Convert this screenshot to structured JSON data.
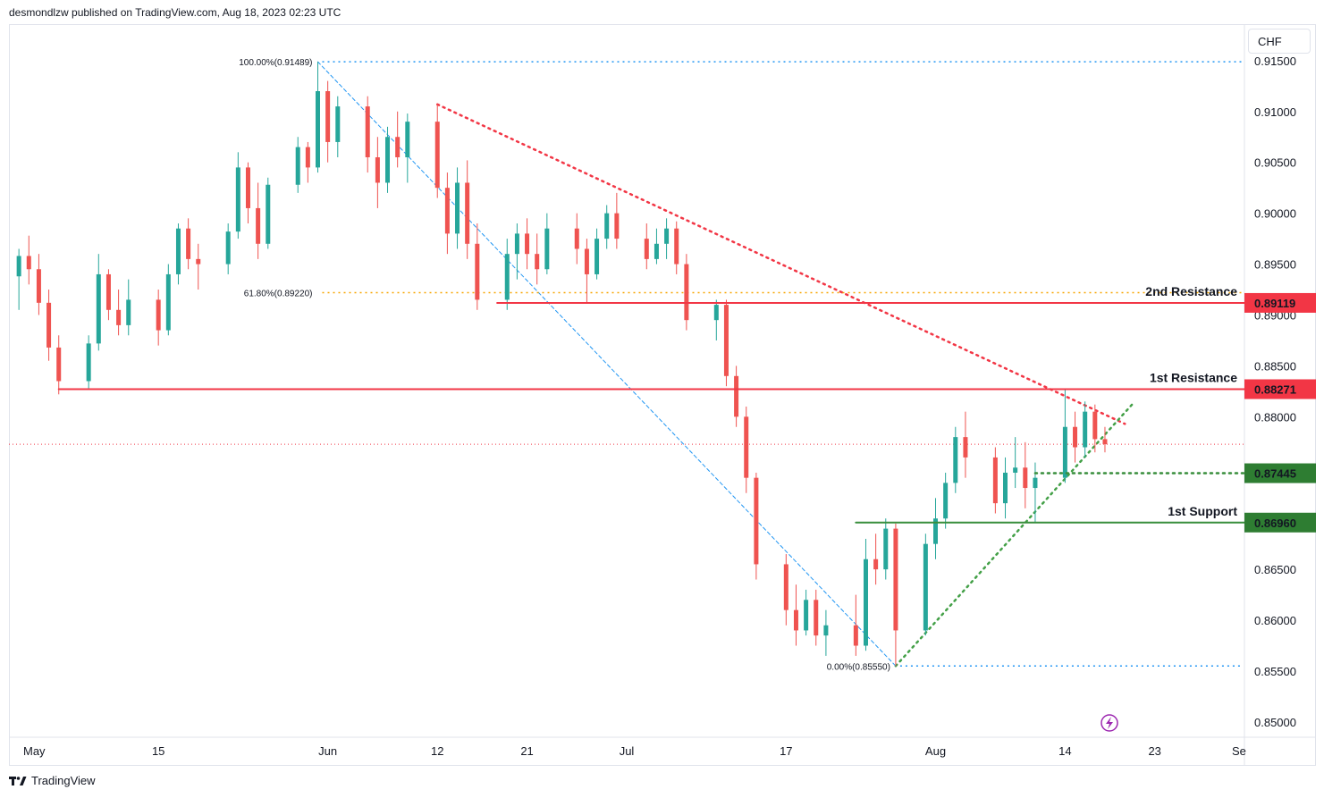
{
  "header": {
    "text": "desmondlzw published on TradingView.com, Aug 18, 2023 02:23 UTC"
  },
  "currency_button": {
    "label": "CHF"
  },
  "footer": {
    "brand": "TradingView"
  },
  "colors": {
    "up": "#26a69a",
    "down": "#ef5350",
    "resistance": "#f23645",
    "support": "#388e3c",
    "fib": "#2962ff",
    "fib618": "#f7a600"
  },
  "icons": {
    "brand": "tradingview-logo-icon",
    "replay": "lightning-icon"
  },
  "chart_data": {
    "type": "candlestick",
    "ylim": [
      0.8485,
      0.9185
    ],
    "y_ticks": [
      "0.91500",
      "0.91000",
      "0.90500",
      "0.90000",
      "0.89500",
      "0.89000",
      "0.88500",
      "0.88000",
      "0.87500",
      "0.87000",
      "0.86500",
      "0.86000",
      "0.85500",
      "0.85000"
    ],
    "x_ticks": [
      {
        "label": "May",
        "date": "2023-05-01"
      },
      {
        "label": "15",
        "date": "2023-05-15"
      },
      {
        "label": "Jun",
        "date": "2023-06-01"
      },
      {
        "label": "12",
        "date": "2023-06-12"
      },
      {
        "label": "21",
        "date": "2023-06-21"
      },
      {
        "label": "Jul",
        "date": "2023-07-01"
      },
      {
        "label": "17",
        "date": "2023-07-17"
      },
      {
        "label": "Aug",
        "date": "2023-08-01"
      },
      {
        "label": "14",
        "date": "2023-08-14"
      },
      {
        "label": "23",
        "date": "2023-08-23"
      },
      {
        "label": "Se",
        "date": "2023-09-01"
      }
    ],
    "x_range": [
      "2023-04-30",
      "2023-09-01"
    ],
    "levels": [
      {
        "name": "2nd Resistance",
        "value": 0.89119,
        "label": "0.89119",
        "kind": "resistance",
        "from": "2023-06-18"
      },
      {
        "name": "1st Resistance",
        "value": 0.88271,
        "label": "0.88271",
        "kind": "resistance",
        "from": "2023-05-05"
      },
      {
        "name": "",
        "value": 0.87445,
        "label": "0.87445",
        "kind": "support-dotted",
        "from": "2023-08-11"
      },
      {
        "name": "1st Support",
        "value": 0.8696,
        "label": "0.86960",
        "kind": "support",
        "from": "2023-07-24"
      }
    ],
    "fibonacci": [
      {
        "label": "100.00%(0.91489)",
        "value": 0.91489,
        "from": "2023-05-31"
      },
      {
        "label": "61.80%(0.89220)",
        "value": 0.8922,
        "from": "2023-05-31"
      },
      {
        "label": "0.00%(0.85550)",
        "value": 0.8555,
        "from": "2023-07-28"
      }
    ],
    "trendlines": [
      {
        "kind": "resistance",
        "points": [
          [
            "2023-06-12",
            0.9107
          ],
          [
            "2023-08-20",
            0.8793
          ]
        ]
      },
      {
        "kind": "support",
        "points": [
          [
            "2023-07-28",
            0.8555
          ],
          [
            "2023-08-21",
            0.8815
          ]
        ]
      },
      {
        "kind": "fib-diagonal",
        "points": [
          [
            "2023-05-31",
            0.91489
          ],
          [
            "2023-07-28",
            0.8555
          ]
        ]
      }
    ],
    "current_price": 0.8773,
    "ohlc": [
      [
        "2023-05-01",
        0.8938,
        0.8965,
        0.8905,
        0.8958
      ],
      [
        "2023-05-02",
        0.8958,
        0.8978,
        0.893,
        0.8945
      ],
      [
        "2023-05-03",
        0.8945,
        0.896,
        0.89,
        0.8912
      ],
      [
        "2023-05-04",
        0.8912,
        0.8925,
        0.8855,
        0.8868
      ],
      [
        "2023-05-05",
        0.8868,
        0.888,
        0.8822,
        0.8835
      ],
      [
        "2023-05-08",
        0.8835,
        0.888,
        0.8828,
        0.8872
      ],
      [
        "2023-05-09",
        0.8872,
        0.896,
        0.8865,
        0.894
      ],
      [
        "2023-05-10",
        0.894,
        0.8945,
        0.8895,
        0.8905
      ],
      [
        "2023-05-11",
        0.8905,
        0.8925,
        0.888,
        0.889
      ],
      [
        "2023-05-12",
        0.889,
        0.8935,
        0.888,
        0.8915
      ],
      [
        "2023-05-15",
        0.8915,
        0.8925,
        0.887,
        0.8885
      ],
      [
        "2023-05-16",
        0.8885,
        0.895,
        0.888,
        0.894
      ],
      [
        "2023-05-17",
        0.894,
        0.899,
        0.893,
        0.8985
      ],
      [
        "2023-05-18",
        0.8985,
        0.8995,
        0.8945,
        0.8955
      ],
      [
        "2023-05-19",
        0.8955,
        0.897,
        0.8925,
        0.895
      ],
      [
        "2023-05-22",
        0.895,
        0.899,
        0.894,
        0.8982
      ],
      [
        "2023-05-23",
        0.8982,
        0.906,
        0.8975,
        0.9045
      ],
      [
        "2023-05-24",
        0.9045,
        0.905,
        0.899,
        0.9005
      ],
      [
        "2023-05-25",
        0.9005,
        0.903,
        0.8955,
        0.897
      ],
      [
        "2023-05-26",
        0.897,
        0.9035,
        0.8965,
        0.9028
      ],
      [
        "2023-05-29",
        0.9028,
        0.9075,
        0.902,
        0.9065
      ],
      [
        "2023-05-30",
        0.9065,
        0.907,
        0.903,
        0.9045
      ],
      [
        "2023-05-31",
        0.9045,
        0.9149,
        0.904,
        0.912
      ],
      [
        "2023-06-01",
        0.912,
        0.913,
        0.905,
        0.907
      ],
      [
        "2023-06-02",
        0.907,
        0.9115,
        0.9055,
        0.9105
      ],
      [
        "2023-06-05",
        0.9105,
        0.9115,
        0.904,
        0.9055
      ],
      [
        "2023-06-06",
        0.9055,
        0.9075,
        0.9005,
        0.903
      ],
      [
        "2023-06-07",
        0.903,
        0.9085,
        0.902,
        0.9075
      ],
      [
        "2023-06-08",
        0.9075,
        0.91,
        0.9045,
        0.9055
      ],
      [
        "2023-06-09",
        0.9055,
        0.9098,
        0.903,
        0.909
      ],
      [
        "2023-06-12",
        0.909,
        0.9107,
        0.9015,
        0.9025
      ],
      [
        "2023-06-13",
        0.9025,
        0.904,
        0.896,
        0.898
      ],
      [
        "2023-06-14",
        0.898,
        0.9045,
        0.8965,
        0.903
      ],
      [
        "2023-06-15",
        0.903,
        0.9052,
        0.8955,
        0.897
      ],
      [
        "2023-06-16",
        0.897,
        0.899,
        0.8905,
        0.8915
      ],
      [
        "2023-06-19",
        0.8915,
        0.8975,
        0.8905,
        0.896
      ],
      [
        "2023-06-20",
        0.896,
        0.899,
        0.8935,
        0.898
      ],
      [
        "2023-06-21",
        0.898,
        0.8995,
        0.8945,
        0.896
      ],
      [
        "2023-06-22",
        0.896,
        0.898,
        0.893,
        0.8945
      ],
      [
        "2023-06-23",
        0.8945,
        0.9,
        0.894,
        0.8985
      ],
      [
        "2023-06-26",
        0.8985,
        0.9,
        0.895,
        0.8965
      ],
      [
        "2023-06-27",
        0.8965,
        0.8975,
        0.8912,
        0.894
      ],
      [
        "2023-06-28",
        0.894,
        0.8985,
        0.8935,
        0.8975
      ],
      [
        "2023-06-29",
        0.8975,
        0.9008,
        0.8965,
        0.9
      ],
      [
        "2023-06-30",
        0.9,
        0.902,
        0.8965,
        0.8975
      ],
      [
        "2023-07-03",
        0.8975,
        0.899,
        0.8945,
        0.8955
      ],
      [
        "2023-07-04",
        0.8955,
        0.8985,
        0.895,
        0.897
      ],
      [
        "2023-07-05",
        0.897,
        0.8995,
        0.8955,
        0.8985
      ],
      [
        "2023-07-06",
        0.8985,
        0.8992,
        0.894,
        0.895
      ],
      [
        "2023-07-07",
        0.895,
        0.896,
        0.8885,
        0.8895
      ],
      [
        "2023-07-10",
        0.8895,
        0.8915,
        0.8875,
        0.891
      ],
      [
        "2023-07-11",
        0.891,
        0.8915,
        0.883,
        0.884
      ],
      [
        "2023-07-12",
        0.884,
        0.885,
        0.879,
        0.88
      ],
      [
        "2023-07-13",
        0.88,
        0.881,
        0.8725,
        0.874
      ],
      [
        "2023-07-14",
        0.874,
        0.8745,
        0.864,
        0.8655
      ],
      [
        "2023-07-17",
        0.8655,
        0.8665,
        0.8595,
        0.861
      ],
      [
        "2023-07-18",
        0.861,
        0.8635,
        0.8575,
        0.859
      ],
      [
        "2023-07-19",
        0.859,
        0.863,
        0.8585,
        0.862
      ],
      [
        "2023-07-20",
        0.862,
        0.863,
        0.8575,
        0.8585
      ],
      [
        "2023-07-21",
        0.8585,
        0.861,
        0.8565,
        0.8595
      ],
      [
        "2023-07-24",
        0.8595,
        0.8625,
        0.8565,
        0.8575
      ],
      [
        "2023-07-25",
        0.8575,
        0.868,
        0.857,
        0.866
      ],
      [
        "2023-07-26",
        0.866,
        0.8685,
        0.8635,
        0.865
      ],
      [
        "2023-07-27",
        0.865,
        0.87,
        0.864,
        0.869
      ],
      [
        "2023-07-28",
        0.869,
        0.8695,
        0.8555,
        0.859
      ],
      [
        "2023-07-31",
        0.859,
        0.8685,
        0.8585,
        0.8675
      ],
      [
        "2023-08-01",
        0.8675,
        0.872,
        0.866,
        0.87
      ],
      [
        "2023-08-02",
        0.87,
        0.8745,
        0.869,
        0.8735
      ],
      [
        "2023-08-03",
        0.8735,
        0.879,
        0.8725,
        0.878
      ],
      [
        "2023-08-04",
        0.878,
        0.8805,
        0.874,
        0.876
      ],
      [
        "2023-08-07",
        0.876,
        0.877,
        0.8705,
        0.8715
      ],
      [
        "2023-08-08",
        0.8715,
        0.876,
        0.87,
        0.8745
      ],
      [
        "2023-08-09",
        0.8745,
        0.878,
        0.873,
        0.875
      ],
      [
        "2023-08-10",
        0.875,
        0.8775,
        0.871,
        0.873
      ],
      [
        "2023-08-11",
        0.873,
        0.8755,
        0.8696,
        0.874
      ],
      [
        "2023-08-14",
        0.874,
        0.8827,
        0.8735,
        0.879
      ],
      [
        "2023-08-15",
        0.879,
        0.8805,
        0.8755,
        0.877
      ],
      [
        "2023-08-16",
        0.877,
        0.8815,
        0.876,
        0.8805
      ],
      [
        "2023-08-17",
        0.8805,
        0.8812,
        0.8765,
        0.8778
      ],
      [
        "2023-08-18",
        0.8778,
        0.879,
        0.8765,
        0.8773
      ]
    ]
  }
}
